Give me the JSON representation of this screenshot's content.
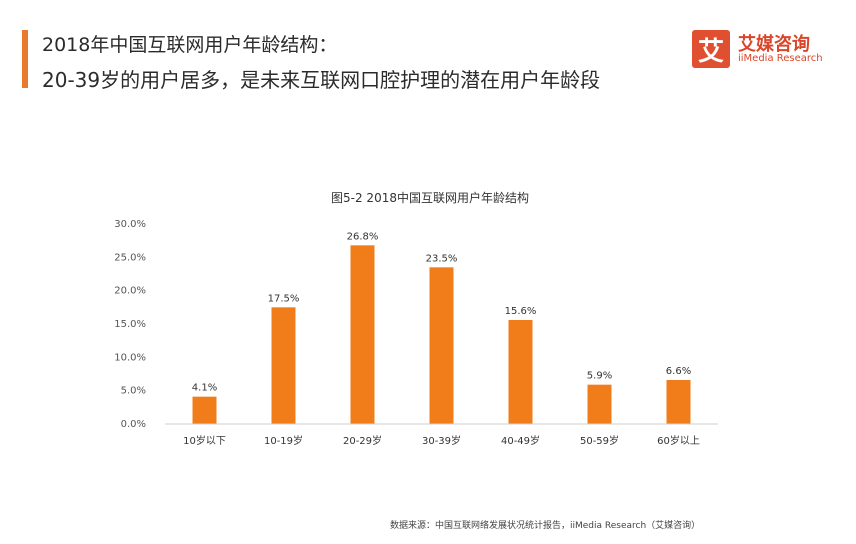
{
  "header": {
    "line1": "2018年中国互联网用户年龄结构：",
    "line2": "20-39岁的用户居多，是未来互联网口腔护理的潜在用户年龄段"
  },
  "brand": {
    "mark": "艾",
    "name": "艾媒咨询",
    "sub": "iiMedia Research",
    "color": "#e04f2f"
  },
  "chart_data": {
    "type": "bar",
    "title": "图5-2 2018中国互联网用户年龄结构",
    "categories": [
      "10岁以下",
      "10-19岁",
      "20-29岁",
      "30-39岁",
      "40-49岁",
      "50-59岁",
      "60岁以上"
    ],
    "values": [
      4.1,
      17.5,
      26.8,
      23.5,
      15.6,
      5.9,
      6.6
    ],
    "value_labels": [
      "4.1%",
      "17.5%",
      "26.8%",
      "23.5%",
      "15.6%",
      "5.9%",
      "6.6%"
    ],
    "y_ticks": [
      "0.0%",
      "5.0%",
      "10.0%",
      "15.0%",
      "20.0%",
      "25.0%",
      "30.0%"
    ],
    "ylim": [
      0,
      30
    ],
    "bar_color": "#f07d1a",
    "xlabel": "",
    "ylabel": "",
    "grid": false
  },
  "source": "数据来源：中国互联网络发展状况统计报告，iiMedia Research（艾媒咨询）"
}
